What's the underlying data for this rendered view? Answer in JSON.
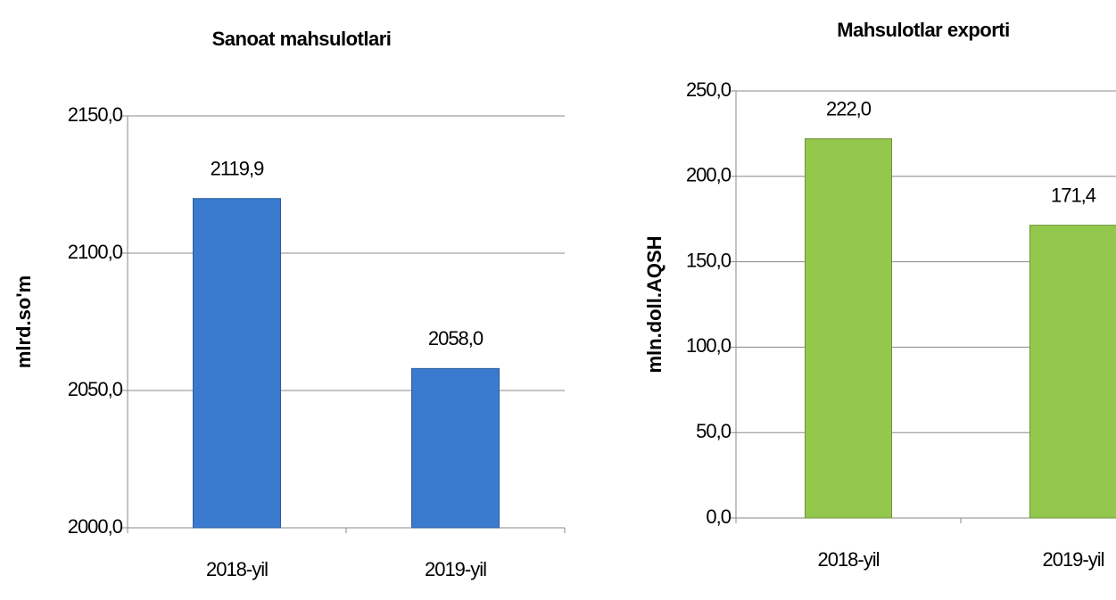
{
  "chart_data": [
    {
      "type": "bar",
      "title": "Sanoat mahsulotlari",
      "y_label": "mlrd.so'm",
      "categories": [
        "2018-yil",
        "2019-yil"
      ],
      "values": [
        2119.9,
        2058.0
      ],
      "value_labels": [
        "2119,9",
        "2058,0"
      ],
      "color": "#3a7bd0",
      "ylim": [
        2000,
        2150
      ],
      "yticks": [
        {
          "value": 2000,
          "label": "2000,0"
        },
        {
          "value": 2050,
          "label": "2050,0"
        },
        {
          "value": 2100,
          "label": "2100,0"
        },
        {
          "value": 2150,
          "label": "2150,0"
        }
      ],
      "grid": true
    },
    {
      "type": "bar",
      "title": "Mahsulotlar exporti",
      "y_label": "mln.doll.AQSH",
      "categories": [
        "2018-yil",
        "2019-yil"
      ],
      "values": [
        222.0,
        171.4
      ],
      "value_labels": [
        "222,0",
        "171,4"
      ],
      "color": "#93c84c",
      "ylim": [
        0,
        250
      ],
      "yticks": [
        {
          "value": 0,
          "label": "0,0"
        },
        {
          "value": 50,
          "label": "50,0"
        },
        {
          "value": 100,
          "label": "100,0"
        },
        {
          "value": 150,
          "label": "150,0"
        },
        {
          "value": 200,
          "label": "200,0"
        },
        {
          "value": 250,
          "label": "250,0"
        }
      ],
      "grid": true
    }
  ]
}
